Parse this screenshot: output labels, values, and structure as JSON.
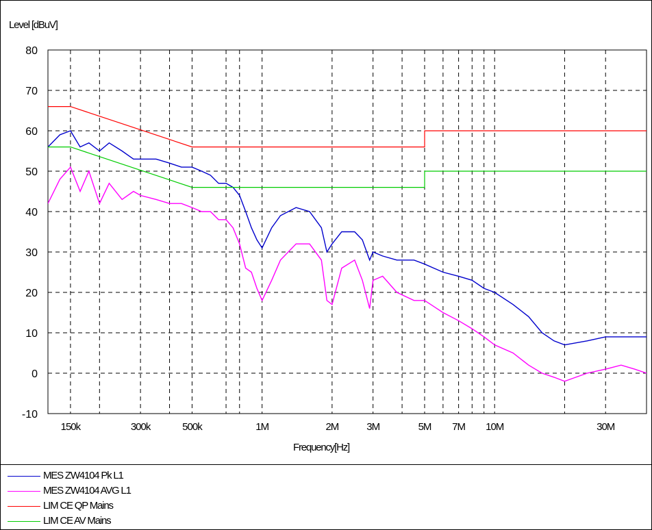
{
  "chart_data": {
    "type": "line",
    "ylabel": "Level [dBuV]",
    "xlabel": "Frequency[Hz]",
    "x_scale": "log",
    "xlim": [
      120000,
      45000000
    ],
    "ylim": [
      -10,
      80
    ],
    "y_ticks": [
      -10,
      0,
      10,
      20,
      30,
      40,
      50,
      60,
      70,
      80
    ],
    "x_tick_values": [
      150000,
      300000,
      500000,
      1000000,
      2000000,
      3000000,
      5000000,
      7000000,
      10000000,
      30000000
    ],
    "x_tick_labels": [
      "150k",
      "300k",
      "500k",
      "1M",
      "2M",
      "3M",
      "5M",
      "7M",
      "10M",
      "30M"
    ],
    "x_grid_lines": [
      150000,
      200000,
      300000,
      400000,
      500000,
      700000,
      800000,
      1000000,
      2000000,
      3000000,
      4000000,
      5000000,
      6000000,
      7000000,
      8000000,
      9000000,
      10000000,
      20000000,
      30000000
    ],
    "grid": true,
    "grid_style": "dashed",
    "legend_position": "bottom",
    "series": [
      {
        "name": "MES ZW4104 Pk L1",
        "color": "#0000cc",
        "x": [
          120000,
          135000,
          150000,
          165000,
          180000,
          200000,
          220000,
          250000,
          280000,
          300000,
          350000,
          400000,
          450000,
          500000,
          550000,
          600000,
          650000,
          700000,
          750000,
          800000,
          850000,
          900000,
          950000,
          1000000,
          1100000,
          1200000,
          1400000,
          1600000,
          1800000,
          1900000,
          2000000,
          2200000,
          2500000,
          2700000,
          2900000,
          3000000,
          3300000,
          3800000,
          4500000,
          5000000,
          6000000,
          7000000,
          8000000,
          9000000,
          10000000,
          12000000,
          14000000,
          16000000,
          18000000,
          20000000,
          25000000,
          30000000,
          35000000,
          40000000,
          45000000
        ],
        "y": [
          56,
          59,
          60,
          56,
          57,
          55,
          57,
          55,
          53,
          53,
          53,
          52,
          51,
          51,
          50,
          49,
          47,
          47,
          46,
          44,
          40,
          36,
          33,
          31,
          36,
          39,
          41,
          40,
          36,
          30,
          32,
          35,
          35,
          33,
          28,
          30,
          29,
          28,
          28,
          27,
          25,
          24,
          23,
          21,
          20,
          17,
          14,
          10,
          8,
          7,
          8,
          9,
          9,
          9,
          9
        ]
      },
      {
        "name": "MES ZW4104 AVG L1",
        "color": "#ff00ff",
        "x": [
          120000,
          135000,
          150000,
          165000,
          180000,
          200000,
          220000,
          250000,
          280000,
          300000,
          350000,
          400000,
          450000,
          500000,
          550000,
          600000,
          650000,
          700000,
          750000,
          800000,
          850000,
          900000,
          950000,
          1000000,
          1100000,
          1200000,
          1400000,
          1600000,
          1800000,
          1900000,
          2000000,
          2200000,
          2500000,
          2700000,
          2900000,
          3000000,
          3300000,
          3800000,
          4500000,
          5000000,
          6000000,
          7000000,
          8000000,
          9000000,
          10000000,
          12000000,
          14000000,
          16000000,
          18000000,
          20000000,
          25000000,
          30000000,
          35000000,
          40000000,
          45000000
        ],
        "y": [
          42,
          48,
          51,
          45,
          50,
          42,
          47,
          43,
          45,
          44,
          43,
          42,
          42,
          41,
          40,
          40,
          38,
          38,
          36,
          32,
          26,
          25,
          21,
          18,
          23,
          28,
          32,
          32,
          28,
          18,
          17,
          26,
          28,
          23,
          16,
          23,
          24,
          20,
          18,
          18,
          15,
          13,
          11,
          9,
          7,
          5,
          2,
          0,
          -1,
          -2,
          0,
          1,
          2,
          1,
          0
        ]
      },
      {
        "name": "LIM CE QP Mains",
        "color": "#ff0000",
        "x": [
          120000,
          150000,
          500000,
          500000,
          5000000,
          5000000,
          45000000
        ],
        "y": [
          66,
          66,
          56,
          56,
          56,
          60,
          60
        ]
      },
      {
        "name": "LIM CE AV Mains",
        "color": "#00cc00",
        "x": [
          120000,
          150000,
          500000,
          500000,
          5000000,
          5000000,
          45000000
        ],
        "y": [
          56,
          56,
          46,
          46,
          46,
          50,
          50
        ]
      }
    ]
  }
}
